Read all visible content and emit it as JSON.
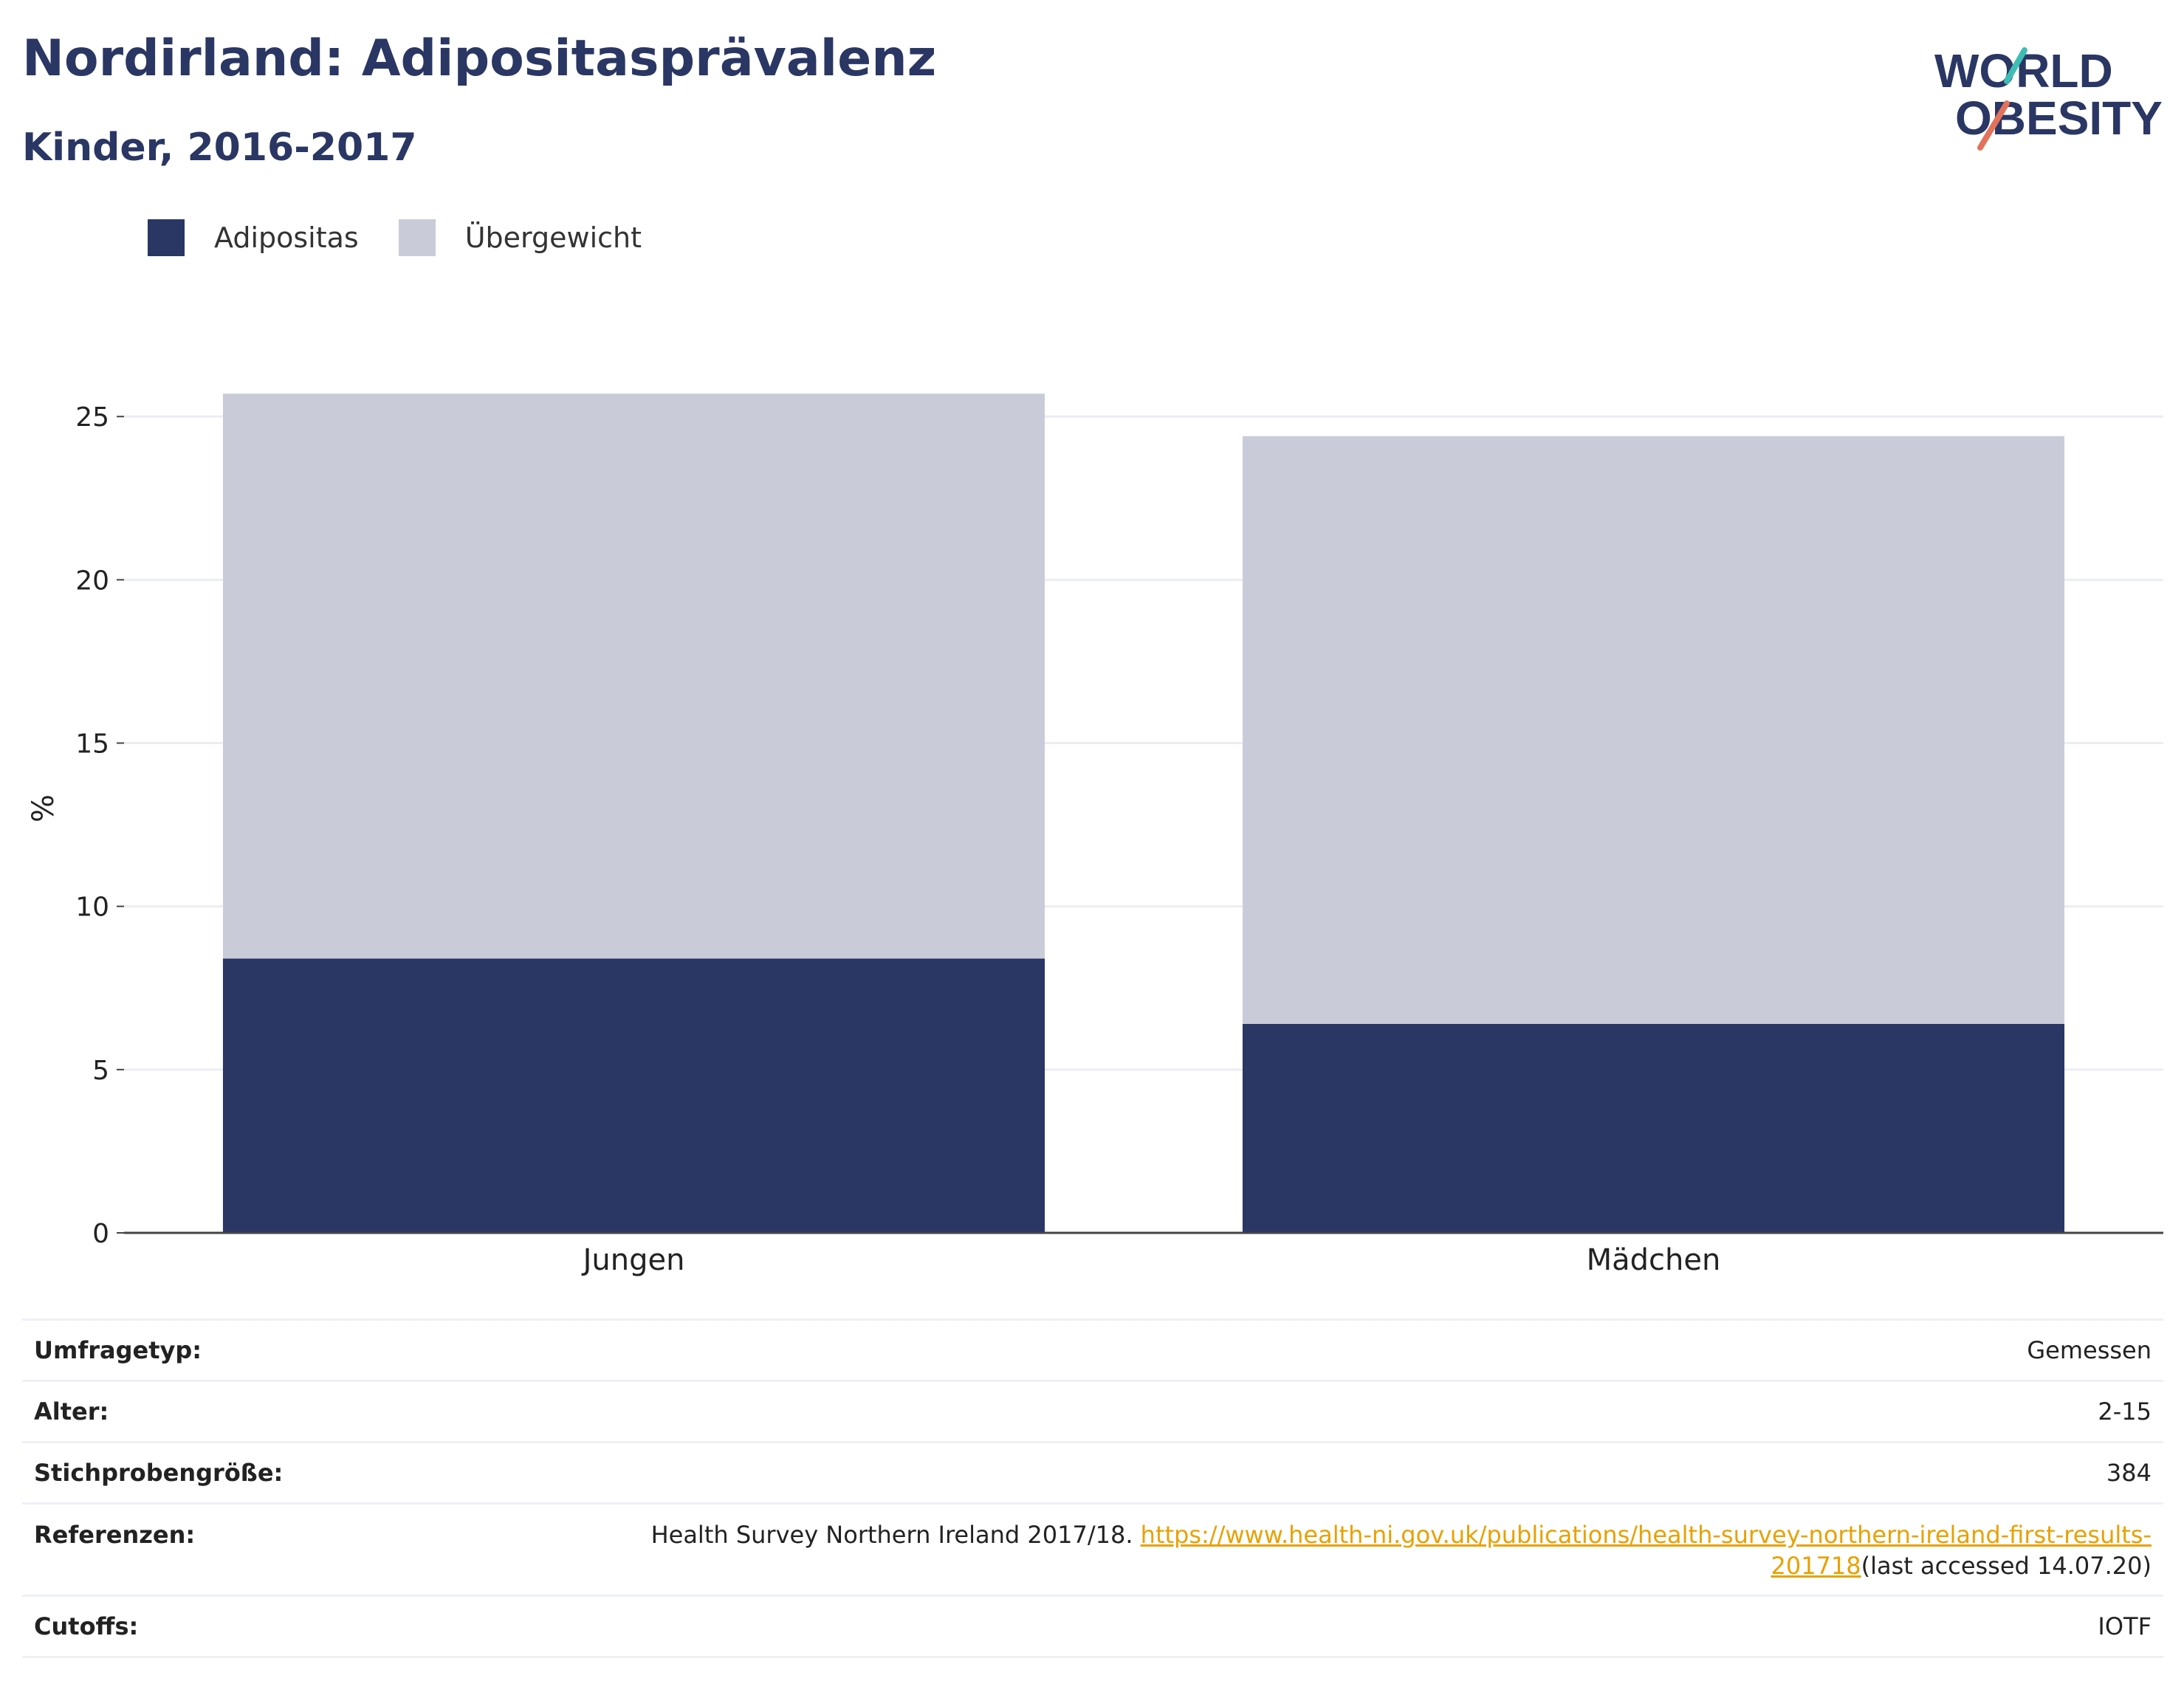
{
  "header": {
    "title": "Nordirland: Adipositasprävalenz",
    "subtitle": "Kinder, 2016-2017"
  },
  "logo": {
    "line1": "WORLD",
    "line2": "OBESITY",
    "icon": "world-obesity-logo"
  },
  "colors": {
    "adipositas": "#2a3663",
    "uebergewicht": "#c9ccd8",
    "title": "#2a3663",
    "link": "#e8a100"
  },
  "chart_data": {
    "type": "bar",
    "stacked": true,
    "categories": [
      "Jungen",
      "Mädchen"
    ],
    "series": [
      {
        "name": "Adipositas",
        "values": [
          8.4,
          6.4
        ]
      },
      {
        "name": "Übergewicht",
        "values": [
          17.3,
          18.0
        ]
      }
    ],
    "ylabel": "%",
    "ylim": [
      0,
      26
    ],
    "yticks": [
      0,
      5,
      10,
      15,
      20,
      25
    ],
    "grid": true,
    "legend": "top-left"
  },
  "info": {
    "survey_type": {
      "label": "Umfragetyp:",
      "value": "Gemessen"
    },
    "age": {
      "label": "Alter:",
      "value": "2-15"
    },
    "sample_size": {
      "label": "Stichprobengröße:",
      "value": "384"
    },
    "references": {
      "label": "Referenzen:",
      "text": "Health Survey Northern Ireland 2017/18. ",
      "link": "https://www.health-ni.gov.uk/publications/health-survey-northern-ireland-first-results-201718",
      "suffix": "(last accessed 14.07.20)"
    },
    "cutoffs": {
      "label": "Cutoffs:",
      "value": "IOTF"
    }
  }
}
